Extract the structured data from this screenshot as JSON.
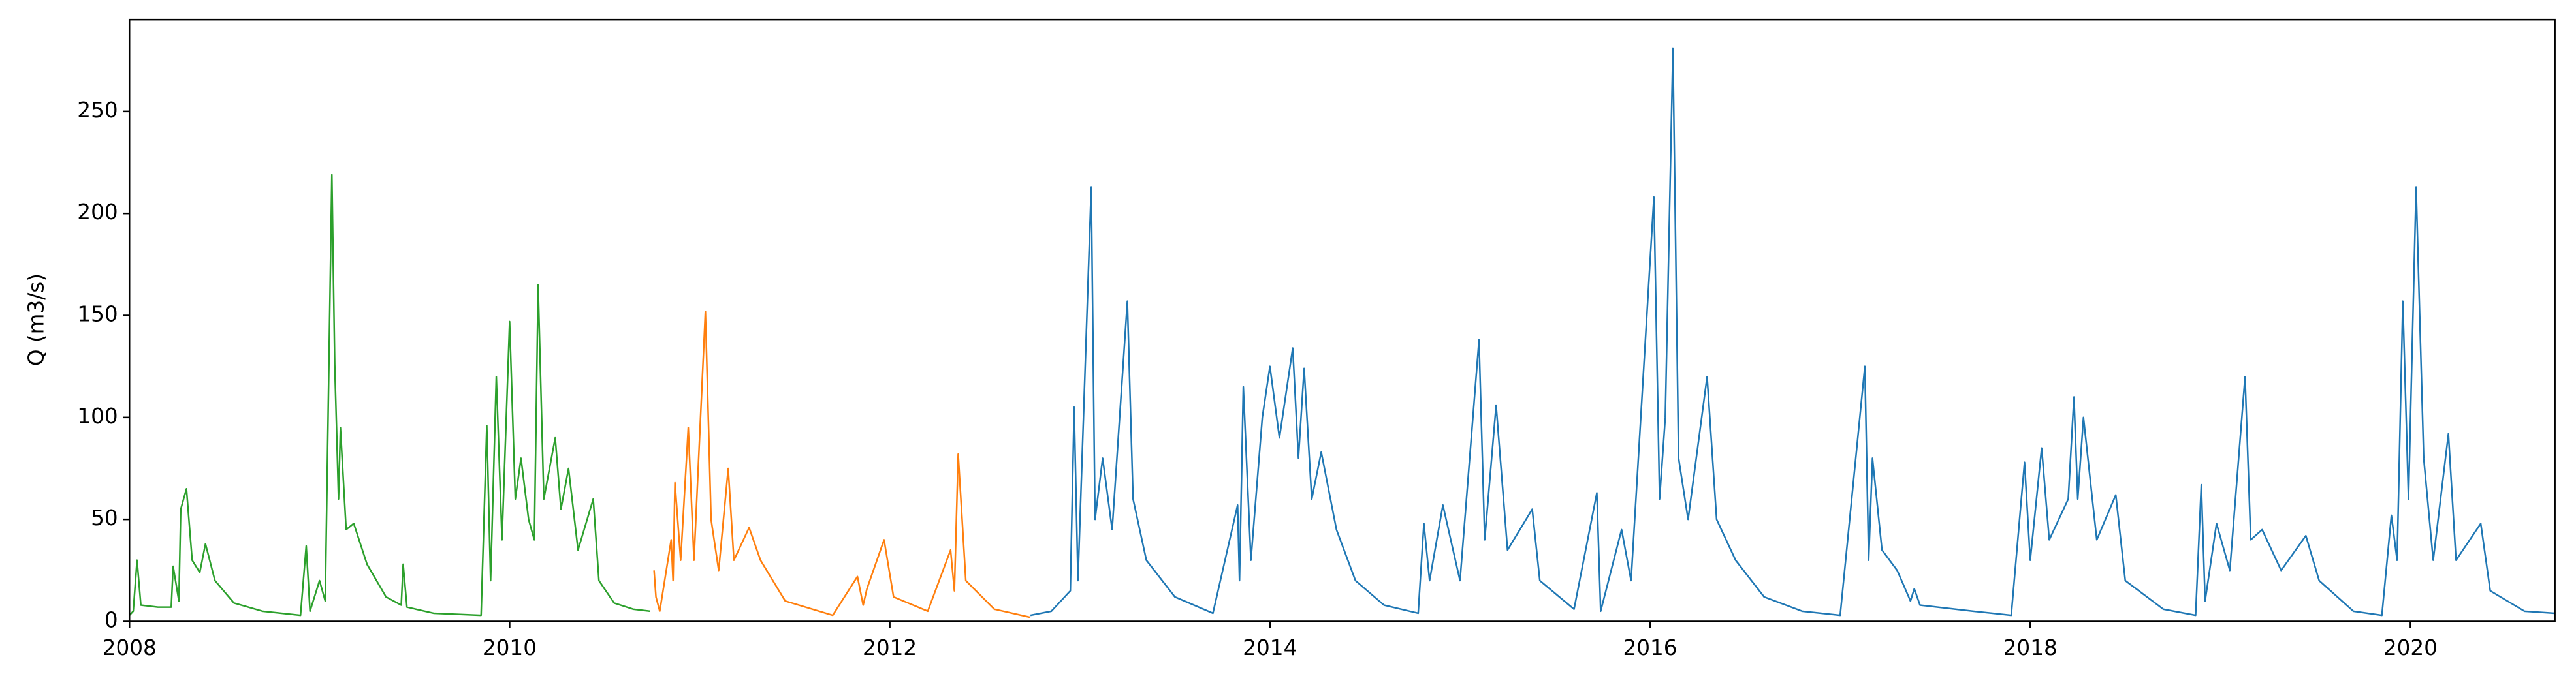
{
  "chart_data": {
    "type": "line",
    "y_label": "Q (m3/s)",
    "xlim": [
      2008,
      2020.76
    ],
    "xticks": [
      2008,
      2010,
      2012,
      2014,
      2016,
      2018,
      2020
    ],
    "ylim": [
      0,
      295
    ],
    "yticks": [
      0,
      50,
      100,
      150,
      200,
      250
    ],
    "grid": false,
    "series": [
      {
        "color": "#2ca02c",
        "x": [
          2008.0,
          2008.02,
          2008.04,
          2008.06,
          2008.15,
          2008.22,
          2008.23,
          2008.26,
          2008.27,
          2008.3,
          2008.33,
          2008.37,
          2008.4,
          2008.45,
          2008.55,
          2008.7,
          2008.9,
          2008.93,
          2008.95,
          2009.0,
          2009.03,
          2009.065,
          2009.08,
          2009.1,
          2009.11,
          2009.14,
          2009.18,
          2009.25,
          2009.35,
          2009.43,
          2009.44,
          2009.46,
          2009.6,
          2009.85,
          2009.88,
          2009.9,
          2009.93,
          2009.96,
          2010.0,
          2010.03,
          2010.06,
          2010.1,
          2010.13,
          2010.15,
          2010.18,
          2010.24,
          2010.27,
          2010.31,
          2010.36,
          2010.44,
          2010.47,
          2010.55,
          2010.65,
          2010.74
        ],
        "values": [
          3,
          5,
          30,
          8,
          7,
          7,
          27,
          10,
          55,
          65,
          30,
          24,
          38,
          20,
          9,
          5,
          3,
          37,
          5,
          20,
          10,
          219,
          126,
          60,
          95,
          45,
          48,
          28,
          12,
          8,
          28,
          7,
          4,
          3,
          96,
          20,
          120,
          40,
          147,
          60,
          80,
          50,
          40,
          165,
          60,
          90,
          55,
          75,
          35,
          60,
          20,
          9,
          6,
          5
        ]
      },
      {
        "color": "#ff7f0e",
        "x": [
          2010.76,
          2010.77,
          2010.79,
          2010.85,
          2010.86,
          2010.87,
          2010.9,
          2010.94,
          2010.97,
          2011.03,
          2011.06,
          2011.1,
          2011.15,
          2011.18,
          2011.26,
          2011.32,
          2011.45,
          2011.7,
          2011.83,
          2011.86,
          2011.88,
          2011.97,
          2012.02,
          2012.2,
          2012.32,
          2012.34,
          2012.36,
          2012.4,
          2012.55,
          2012.74
        ],
        "values": [
          25,
          12,
          5,
          40,
          20,
          68,
          30,
          95,
          30,
          152,
          50,
          25,
          75,
          30,
          46,
          30,
          10,
          3,
          22,
          8,
          16,
          40,
          12,
          5,
          35,
          15,
          82,
          20,
          6,
          2
        ]
      },
      {
        "color": "#1f77b4",
        "x": [
          2012.74,
          2012.85,
          2012.95,
          2012.97,
          2012.99,
          2013.06,
          2013.08,
          2013.12,
          2013.17,
          2013.25,
          2013.28,
          2013.35,
          2013.5,
          2013.7,
          2013.83,
          2013.84,
          2013.86,
          2013.9,
          2013.96,
          2014.0,
          2014.05,
          2014.12,
          2014.15,
          2014.18,
          2014.22,
          2014.27,
          2014.35,
          2014.45,
          2014.6,
          2014.78,
          2014.81,
          2014.84,
          2014.91,
          2015.0,
          2015.1,
          2015.13,
          2015.19,
          2015.25,
          2015.38,
          2015.42,
          2015.6,
          2015.72,
          2015.74,
          2015.85,
          2015.9,
          2016.02,
          2016.05,
          2016.08,
          2016.12,
          2016.15,
          2016.2,
          2016.3,
          2016.35,
          2016.45,
          2016.6,
          2016.8,
          2017.0,
          2017.13,
          2017.15,
          2017.17,
          2017.22,
          2017.3,
          2017.37,
          2017.39,
          2017.42,
          2017.7,
          2017.9,
          2017.97,
          2018.0,
          2018.06,
          2018.1,
          2018.2,
          2018.23,
          2018.25,
          2018.28,
          2018.35,
          2018.45,
          2018.5,
          2018.7,
          2018.87,
          2018.9,
          2018.92,
          2018.98,
          2019.05,
          2019.13,
          2019.16,
          2019.22,
          2019.32,
          2019.45,
          2019.52,
          2019.7,
          2019.85,
          2019.9,
          2019.93,
          2019.96,
          2019.99,
          2020.03,
          2020.07,
          2020.12,
          2020.2,
          2020.24,
          2020.37,
          2020.42,
          2020.6,
          2020.76
        ],
        "values": [
          3,
          5,
          15,
          105,
          20,
          213,
          50,
          80,
          45,
          157,
          60,
          30,
          12,
          4,
          57,
          20,
          115,
          30,
          100,
          125,
          90,
          134,
          80,
          124,
          60,
          83,
          45,
          20,
          8,
          4,
          48,
          20,
          57,
          20,
          138,
          40,
          106,
          35,
          55,
          20,
          6,
          63,
          5,
          45,
          20,
          208,
          60,
          100,
          281,
          80,
          50,
          120,
          50,
          30,
          12,
          5,
          3,
          125,
          30,
          80,
          35,
          25,
          10,
          16,
          8,
          5,
          3,
          78,
          30,
          85,
          40,
          60,
          110,
          60,
          100,
          40,
          62,
          20,
          6,
          3,
          67,
          10,
          48,
          25,
          120,
          40,
          45,
          25,
          42,
          20,
          5,
          3,
          52,
          30,
          157,
          60,
          213,
          80,
          30,
          92,
          30,
          48,
          15,
          5,
          4
        ]
      }
    ]
  }
}
